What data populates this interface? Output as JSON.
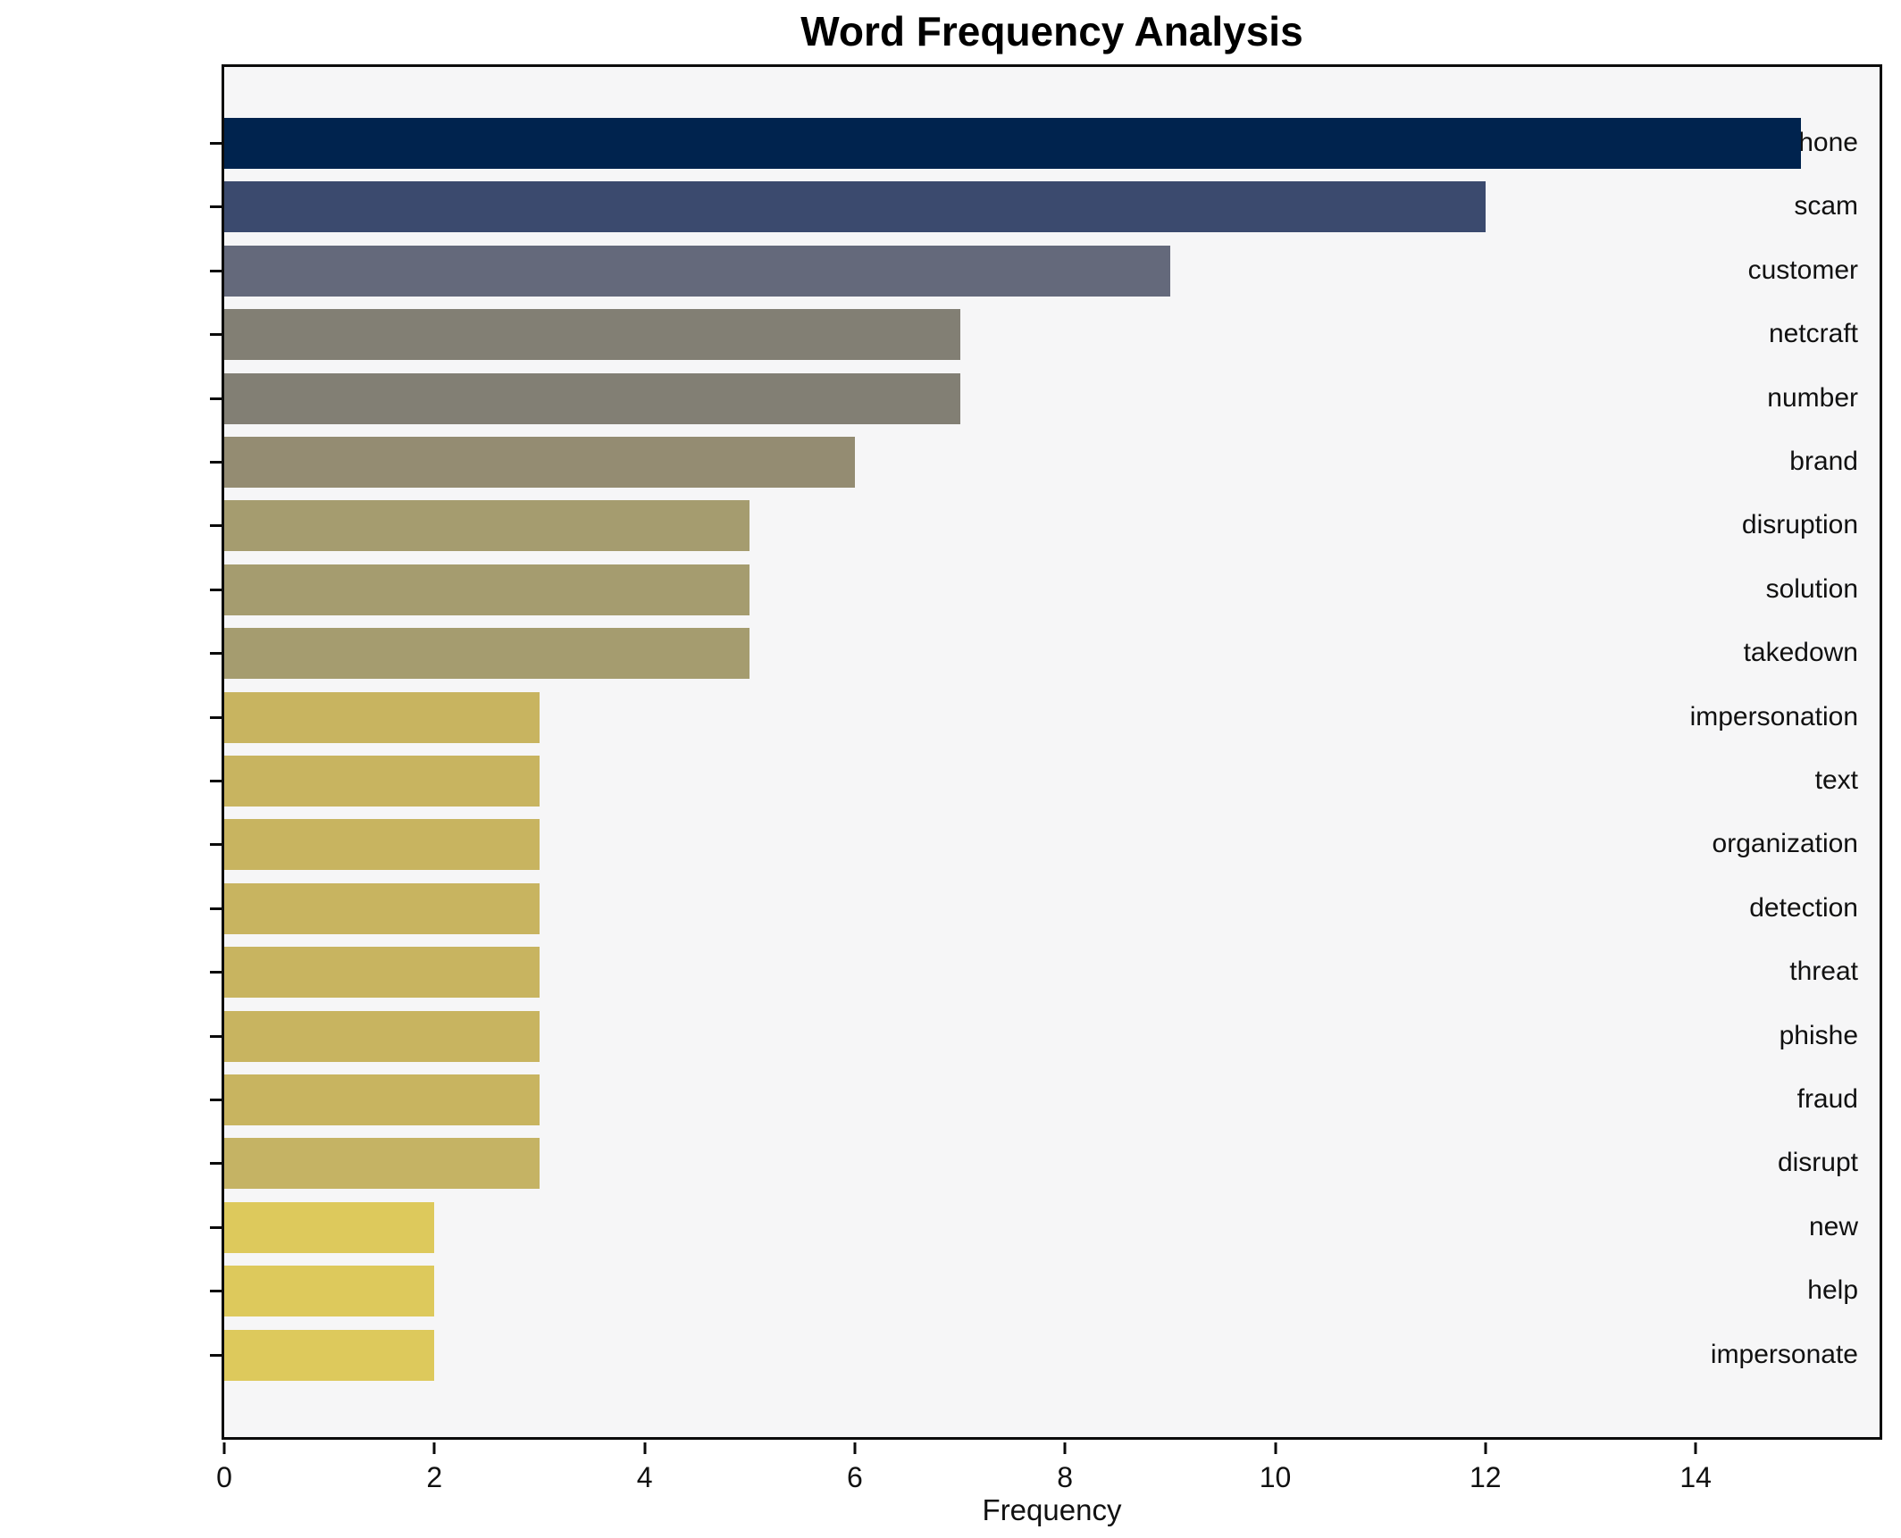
{
  "figure": {
    "title": "Word Frequency Analysis"
  },
  "chart_data": {
    "type": "bar",
    "orientation": "horizontal",
    "title": "Word Frequency Analysis",
    "xlabel": "Frequency",
    "ylabel": "",
    "categories": [
      "phone",
      "scam",
      "customer",
      "netcraft",
      "number",
      "brand",
      "disruption",
      "solution",
      "takedown",
      "impersonation",
      "text",
      "organization",
      "detection",
      "threat",
      "phishe",
      "fraud",
      "disrupt",
      "new",
      "help",
      "impersonate"
    ],
    "values": [
      15,
      12,
      9,
      7,
      7,
      6,
      5,
      5,
      5,
      3,
      3,
      3,
      3,
      3,
      3,
      3,
      3,
      2,
      2,
      2
    ],
    "bar_colors": [
      "#00234e",
      "#3b4a6e",
      "#64697b",
      "#827f74",
      "#827f74",
      "#948c72",
      "#a59c6f",
      "#a59c6f",
      "#a59c6f",
      "#c8b460",
      "#c8b460",
      "#c8b460",
      "#c8b460",
      "#c8b460",
      "#c8b460",
      "#c8b460",
      "#c5b364",
      "#ddc95c",
      "#ddc95c",
      "#ddc95c"
    ],
    "xlim": [
      0,
      15.75
    ],
    "xticks": [
      0,
      2,
      4,
      6,
      8,
      10,
      12,
      14
    ],
    "grid": false,
    "legend": "none",
    "plot_background": "#f6f6f7",
    "axis_color": "#0b0b0b"
  }
}
